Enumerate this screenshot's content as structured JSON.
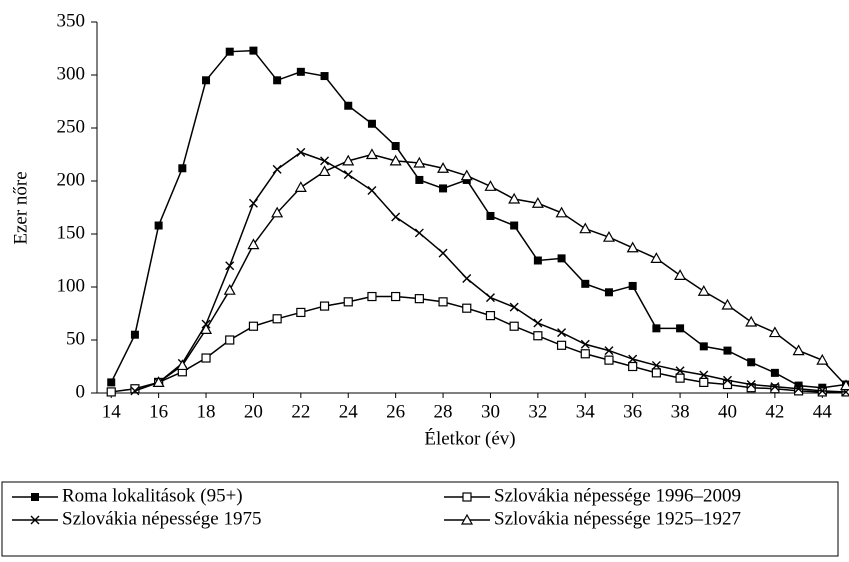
{
  "chart_data": {
    "type": "line",
    "x_label": "Életkor (év)",
    "y_label": "Ezer nőre",
    "x": [
      14,
      15,
      16,
      17,
      18,
      19,
      20,
      21,
      22,
      23,
      24,
      25,
      26,
      27,
      28,
      29,
      30,
      31,
      32,
      33,
      34,
      35,
      36,
      37,
      38,
      39,
      40,
      41,
      42,
      43,
      44,
      45
    ],
    "xlim": [
      13.4,
      45
    ],
    "xticks": [
      14,
      16,
      18,
      20,
      22,
      24,
      26,
      28,
      30,
      32,
      34,
      36,
      38,
      40,
      42,
      44
    ],
    "ylim": [
      0,
      350
    ],
    "yticks": [
      0,
      50,
      100,
      150,
      200,
      250,
      300,
      350
    ],
    "grid": false,
    "legend": "bottom",
    "series": [
      {
        "name": "Roma lokalitások (95+)",
        "color": "#000000",
        "marker": "filled-square",
        "values": [
          10,
          55,
          158,
          212,
          295,
          322,
          323,
          295,
          303,
          299,
          271,
          254,
          233,
          201,
          193,
          201,
          167,
          158,
          125,
          127,
          103,
          95,
          101,
          61,
          61,
          44,
          40,
          29,
          19,
          7,
          5,
          8
        ]
      },
      {
        "name": "Szlovákia népessége 1996–2009",
        "color": "#000000",
        "marker": "square",
        "values": [
          1,
          4,
          10,
          20,
          33,
          50,
          63,
          70,
          76,
          82,
          86,
          91,
          91,
          89,
          86,
          80,
          73,
          63,
          54,
          45,
          37,
          31,
          25,
          19,
          14,
          10,
          8,
          5,
          4,
          2,
          1,
          1
        ]
      },
      {
        "name": "Szlovákia népessége 1975",
        "color": "#000000",
        "marker": "x",
        "values": [
          null,
          2,
          10,
          28,
          65,
          120,
          179,
          211,
          227,
          219,
          206,
          191,
          166,
          151,
          132,
          108,
          90,
          81,
          66,
          57,
          46,
          40,
          32,
          26,
          21,
          17,
          12,
          8,
          6,
          4,
          2,
          1
        ]
      },
      {
        "name": "Szlovákia népessége 1925–1927",
        "color": "#000000",
        "marker": "triangle",
        "values": [
          null,
          null,
          10,
          26,
          60,
          97,
          140,
          170,
          194,
          209,
          219,
          225,
          219,
          217,
          212,
          205,
          195,
          183,
          179,
          170,
          155,
          147,
          137,
          127,
          111,
          96,
          83,
          67,
          57,
          40,
          31,
          7
        ]
      }
    ]
  }
}
